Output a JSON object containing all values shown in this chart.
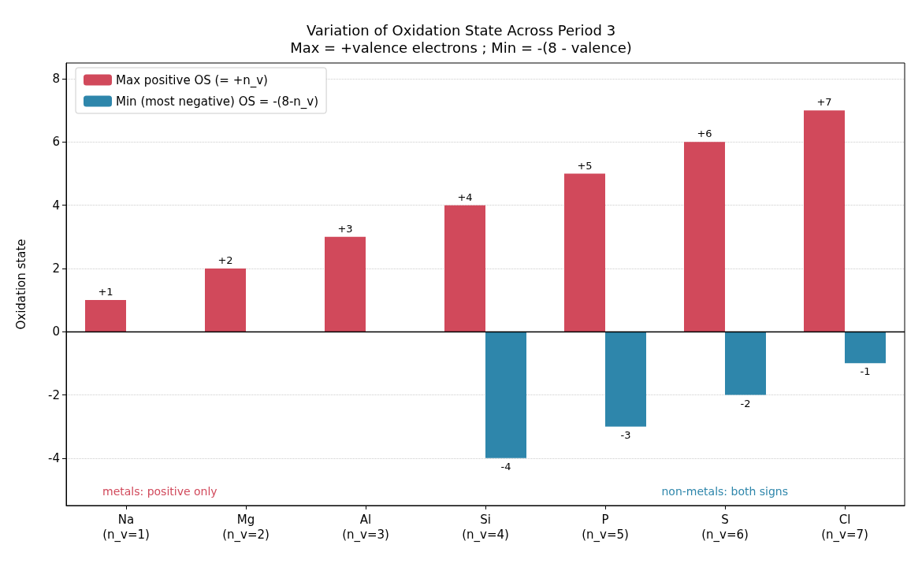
{
  "chart_data": {
    "type": "bar",
    "title": "Variation of Oxidation State Across Period 3",
    "subtitle": "Max = +valence electrons ; Min = -(8 - valence)",
    "ylabel": "Oxidation state",
    "categories": [
      "Na\n(n_v=1)",
      "Mg\n(n_v=2)",
      "Al\n(n_v=3)",
      "Si\n(n_v=4)",
      "P\n(n_v=5)",
      "S\n(n_v=6)",
      "Cl\n(n_v=7)"
    ],
    "series": [
      {
        "name": "Max positive OS (= +n_v)",
        "color": "#d1495b",
        "values": [
          1,
          2,
          3,
          4,
          5,
          6,
          7
        ],
        "value_labels": [
          "+1",
          "+2",
          "+3",
          "+4",
          "+5",
          "+6",
          "+7"
        ]
      },
      {
        "name": "Min (most negative) OS = -(8-n_v)",
        "color": "#2e86ab",
        "values": [
          null,
          null,
          null,
          -4,
          -3,
          -2,
          -1
        ],
        "value_labels": [
          null,
          null,
          null,
          "-4",
          "-3",
          "-2",
          "-1"
        ]
      }
    ],
    "ylim": [
      -5.5,
      8.5
    ],
    "yticks": [
      -4,
      -2,
      0,
      2,
      4,
      6,
      8
    ],
    "grid": "y",
    "legend": "top left",
    "ref_lines": [
      {
        "axis": "y",
        "value": 0,
        "color": "#000000"
      }
    ],
    "annotations": [
      "metals: positive only",
      "non-metals: both signs"
    ]
  }
}
